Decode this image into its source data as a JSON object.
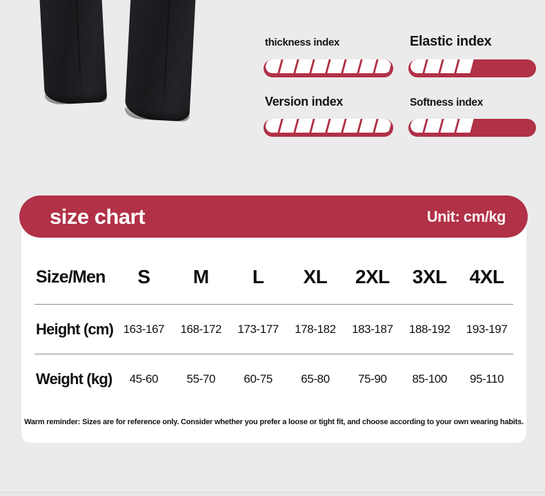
{
  "theme": {
    "accent_red": "#b13147",
    "page_bg": "#ebebec",
    "card_bg": "#ffffff",
    "text_dark": "#111111",
    "text_white": "#ffffff",
    "divider_gray": "#8c8c8c"
  },
  "product": {
    "photo_name": "black-pants-legs-photo"
  },
  "indexes": {
    "items": [
      {
        "label": "thickness index",
        "filled": 8,
        "total": 8
      },
      {
        "label": "Elastic index",
        "filled": 4,
        "total": 8
      },
      {
        "label": "Version index",
        "filled": 8,
        "total": 8
      },
      {
        "label": "Softness index",
        "filled": 4,
        "total": 8
      }
    ]
  },
  "size_chart": {
    "title": "size chart",
    "unit": "Unit: cm/kg",
    "corner_label": "Size/Men",
    "sizes": [
      "S",
      "M",
      "L",
      "XL",
      "2XL",
      "3XL",
      "4XL"
    ],
    "rows": [
      {
        "label": "Height (cm)",
        "values": [
          "163-167",
          "168-172",
          "173-177",
          "178-182",
          "183-187",
          "188-192",
          "193-197"
        ]
      },
      {
        "label": "Weight (kg)",
        "values": [
          "45-60",
          "55-70",
          "60-75",
          "65-80",
          "75-90",
          "85-100",
          "95-110"
        ]
      }
    ],
    "reminder": "Warm reminder: Sizes are for reference only. Consider whether you prefer a loose or tight fit, and choose according to your own wearing habits."
  }
}
